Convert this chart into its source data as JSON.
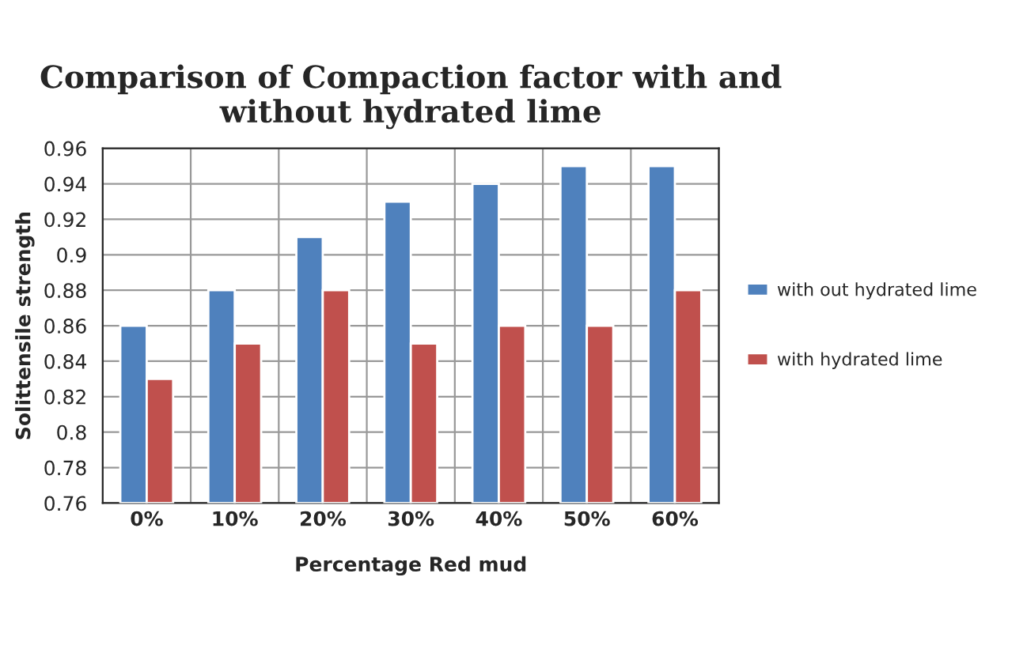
{
  "chart_data": {
    "type": "bar",
    "title": "Comparison of Compaction factor with and without hydrated lime",
    "xlabel": "Percentage Red mud",
    "ylabel": "Solittensile strength",
    "categories": [
      "0%",
      "10%",
      "20%",
      "30%",
      "40%",
      "50%",
      "60%"
    ],
    "series": [
      {
        "name": "with out hydrated lime",
        "color": "#4f81bd",
        "values": [
          0.86,
          0.88,
          0.91,
          0.93,
          0.94,
          0.95,
          0.95
        ]
      },
      {
        "name": "with hydrated lime",
        "color": "#c0504d",
        "values": [
          0.83,
          0.85,
          0.88,
          0.85,
          0.86,
          0.86,
          0.88
        ]
      }
    ],
    "ylim": [
      0.76,
      0.96
    ],
    "yticks": [
      0.76,
      0.78,
      0.8,
      0.82,
      0.84,
      0.86,
      0.88,
      0.9,
      0.92,
      0.94,
      0.96
    ],
    "grid": true,
    "legend": "right"
  }
}
